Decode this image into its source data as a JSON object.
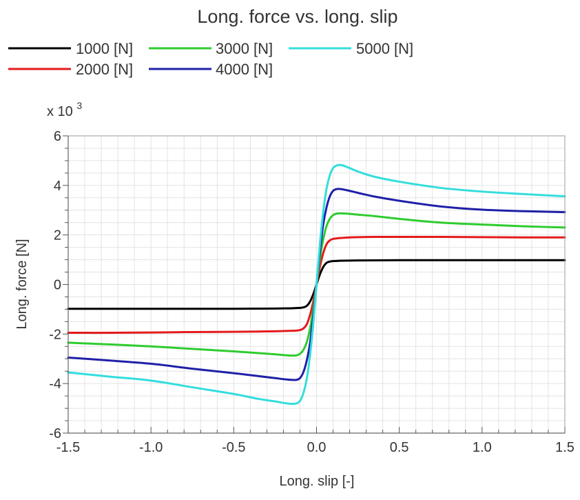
{
  "chart_data": {
    "type": "line",
    "title": "Long. force vs. long. slip",
    "xlabel": "Long. slip [-]",
    "ylabel": "Long. force [N]",
    "y_multiplier": {
      "base": "x 10",
      "exponent": "3"
    },
    "xlim": [
      -1.5,
      1.5
    ],
    "ylim": [
      -6000,
      6000
    ],
    "x_ticks": [
      -1.5,
      -1.0,
      -0.5,
      0.0,
      0.5,
      1.0,
      1.5
    ],
    "x_tick_labels": [
      "-1.5",
      "-1.0",
      "-0.5",
      "0.0",
      "0.5",
      "1.0",
      "1.5"
    ],
    "y_ticks": [
      -6000,
      -4000,
      -2000,
      0,
      2000,
      4000,
      6000
    ],
    "y_tick_labels": [
      "-6",
      "-4",
      "-2",
      "0",
      "2",
      "4",
      "6"
    ],
    "grid": true,
    "legend_position": "top",
    "x": [
      -1.5,
      -1.25,
      -1.0,
      -0.75,
      -0.5,
      -0.35,
      -0.25,
      -0.2,
      -0.15,
      -0.12,
      -0.1,
      -0.08,
      -0.06,
      -0.04,
      -0.02,
      0.0,
      0.02,
      0.04,
      0.06,
      0.08,
      0.1,
      0.12,
      0.15,
      0.2,
      0.25,
      0.35,
      0.5,
      0.75,
      1.0,
      1.25,
      1.5
    ],
    "series": [
      {
        "name": "1000 [N]",
        "color": "#000000",
        "values": [
          -980,
          -980,
          -980,
          -980,
          -980,
          -975,
          -970,
          -965,
          -960,
          -950,
          -945,
          -925,
          -870,
          -700,
          -400,
          0,
          400,
          700,
          870,
          925,
          945,
          950,
          960,
          965,
          970,
          975,
          980,
          980,
          980,
          980,
          980
        ]
      },
      {
        "name": "2000 [N]",
        "color": "#e41a1c",
        "values": [
          -1950,
          -1950,
          -1940,
          -1920,
          -1910,
          -1900,
          -1890,
          -1880,
          -1870,
          -1860,
          -1840,
          -1780,
          -1620,
          -1250,
          -700,
          0,
          700,
          1250,
          1620,
          1780,
          1840,
          1860,
          1880,
          1900,
          1910,
          1920,
          1920,
          1920,
          1910,
          1900,
          1900
        ]
      },
      {
        "name": "3000 [N]",
        "color": "#2ecc2e",
        "values": [
          -2350,
          -2420,
          -2500,
          -2600,
          -2700,
          -2770,
          -2820,
          -2850,
          -2870,
          -2860,
          -2800,
          -2650,
          -2350,
          -1800,
          -1000,
          0,
          1000,
          1800,
          2350,
          2650,
          2800,
          2860,
          2870,
          2850,
          2820,
          2760,
          2650,
          2500,
          2420,
          2350,
          2300
        ]
      },
      {
        "name": "4000 [N]",
        "color": "#1f1fa8",
        "values": [
          -2950,
          -3070,
          -3200,
          -3400,
          -3580,
          -3700,
          -3780,
          -3820,
          -3850,
          -3850,
          -3780,
          -3550,
          -3100,
          -2400,
          -1300,
          0,
          1300,
          2400,
          3100,
          3550,
          3780,
          3850,
          3850,
          3780,
          3700,
          3550,
          3380,
          3150,
          3020,
          2960,
          2920
        ]
      },
      {
        "name": "5000 [N]",
        "color": "#33dddd",
        "values": [
          -3550,
          -3720,
          -3880,
          -4150,
          -4420,
          -4620,
          -4720,
          -4780,
          -4820,
          -4800,
          -4700,
          -4400,
          -3850,
          -2900,
          -1600,
          0,
          1600,
          2900,
          3850,
          4400,
          4700,
          4800,
          4820,
          4700,
          4560,
          4350,
          4150,
          3900,
          3750,
          3650,
          3560
        ]
      }
    ]
  }
}
